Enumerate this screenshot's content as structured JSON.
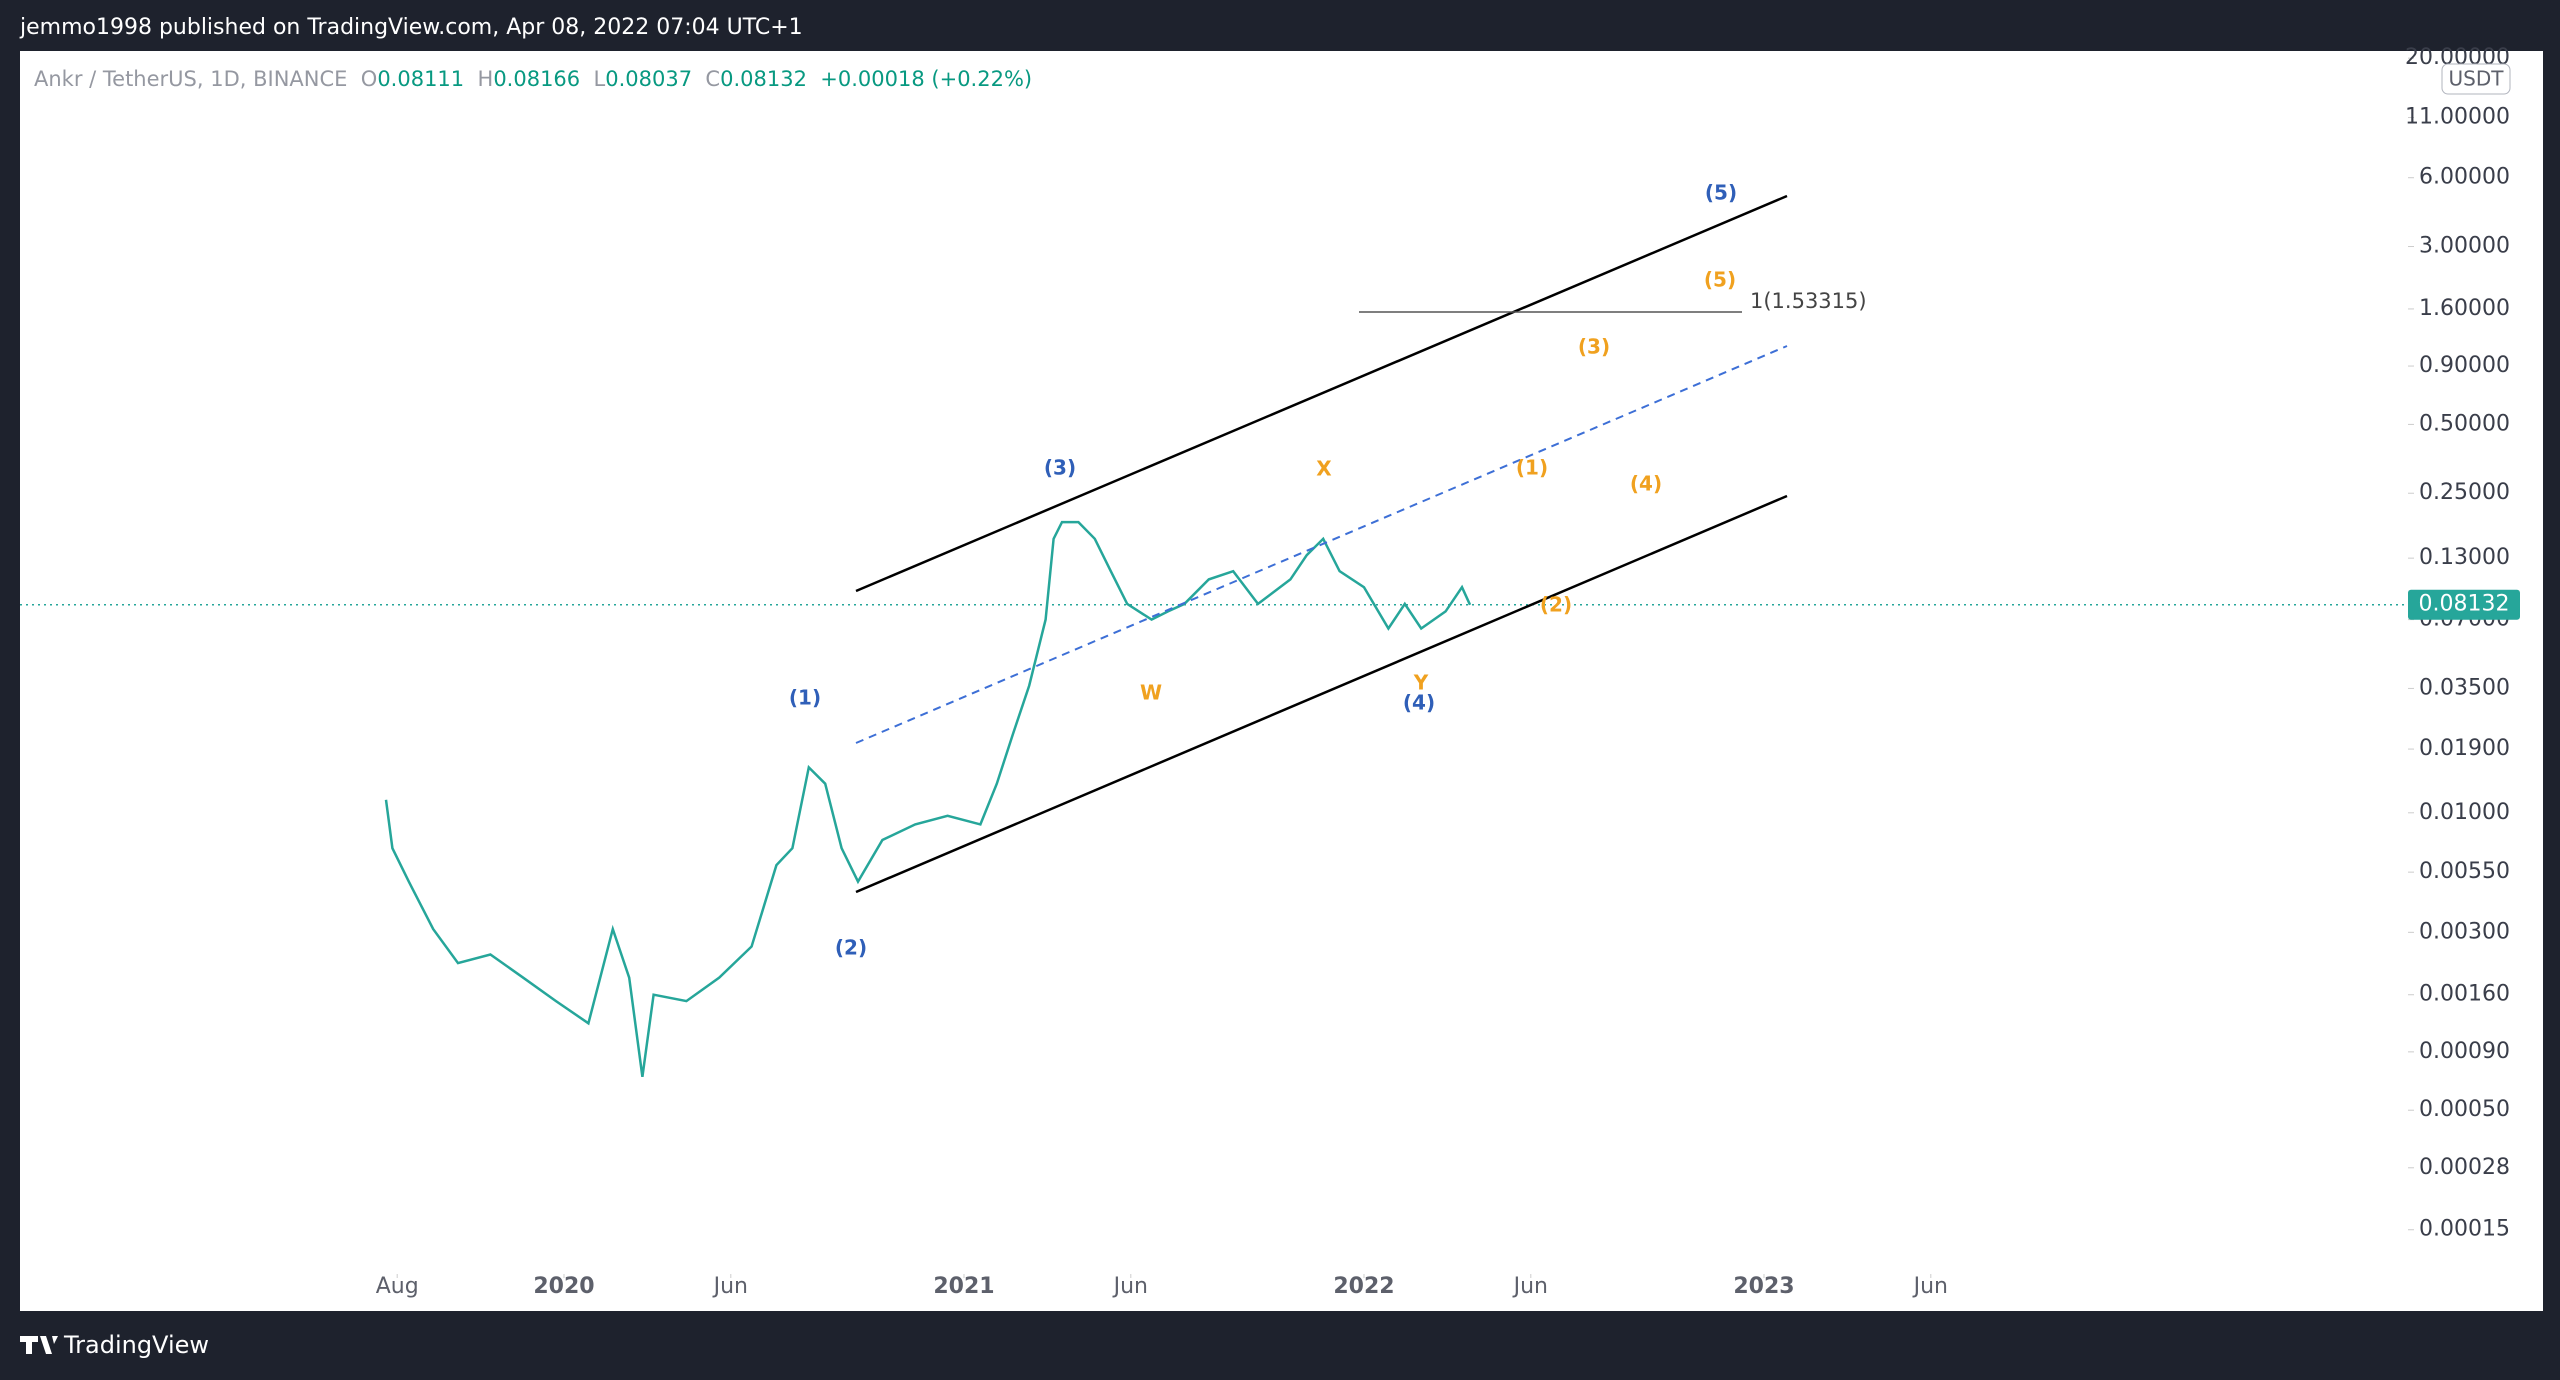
{
  "header": {
    "text": "jemmo1998 published on TradingView.com, Apr 08, 2022 07:04 UTC+1"
  },
  "footer": {
    "brand": "TradingView"
  },
  "chart_data": {
    "type": "line",
    "log_scale": true,
    "symbol": "Ankr / TetherUS, 1D, BINANCE",
    "ohlc": {
      "o_label": "O",
      "o": "0.08111",
      "h_label": "H",
      "h": "0.08166",
      "l_label": "L",
      "l": "0.08037",
      "c_label": "C",
      "c": "0.08132",
      "change": "+0.00018 (+0.22%)"
    },
    "currency": "USDT",
    "last_price": {
      "value": 0.08132,
      "label": "0.08132"
    },
    "x": [
      2019.555,
      2019.571,
      2019.612,
      2019.673,
      2019.735,
      2019.816,
      2019.898,
      2019.98,
      2020.061,
      2020.122,
      2020.163,
      2020.196,
      2020.224,
      2020.306,
      2020.388,
      2020.469,
      2020.531,
      2020.571,
      2020.612,
      2020.653,
      2020.694,
      2020.735,
      2020.796,
      2020.878,
      2020.959,
      2021.041,
      2021.082,
      2021.122,
      2021.163,
      2021.204,
      2021.224,
      2021.245,
      2021.286,
      2021.327,
      2021.367,
      2021.408,
      2021.469,
      2021.51,
      2021.551,
      2021.612,
      2021.673,
      2021.735,
      2021.816,
      2021.857,
      2021.898,
      2021.939,
      2022.0,
      2022.061,
      2022.102,
      2022.143,
      2022.204,
      2022.245,
      2022.265
    ],
    "series": [
      {
        "color": "#26a69a",
        "values": [
          0.0114,
          0.007,
          0.005,
          0.0031,
          0.0022,
          0.0024,
          0.0019,
          0.0015,
          0.0012,
          0.0031,
          0.0019,
          0.0007,
          0.0016,
          0.0015,
          0.0019,
          0.0026,
          0.0059,
          0.007,
          0.0158,
          0.0134,
          0.007,
          0.005,
          0.0076,
          0.0089,
          0.0097,
          0.0089,
          0.0134,
          0.022,
          0.036,
          0.07,
          0.158,
          0.187,
          0.187,
          0.158,
          0.114,
          0.082,
          0.07,
          0.076,
          0.082,
          0.105,
          0.114,
          0.082,
          0.105,
          0.134,
          0.158,
          0.114,
          0.097,
          0.064,
          0.082,
          0.064,
          0.076,
          0.097,
          0.0813
        ]
      }
    ],
    "xlim": [
      2018.64,
      2024.61
    ],
    "xticks": [
      {
        "value": 2019.583,
        "label": "Aug"
      },
      2020,
      {
        "value": 2020.417,
        "label": "Jun"
      },
      2021,
      {
        "value": 2021.417,
        "label": "Jun"
      },
      2022,
      {
        "value": 2022.417,
        "label": "Jun"
      },
      2023,
      {
        "value": 2023.417,
        "label": "Jun"
      }
    ],
    "ylim": [
      0.0001,
      21.5
    ],
    "yticks": [
      {
        "value": 20,
        "label": "20.00000"
      },
      {
        "value": 11,
        "label": "11.00000"
      },
      {
        "value": 6,
        "label": "6.00000"
      },
      {
        "value": 3,
        "label": "3.00000"
      },
      {
        "value": 1.6,
        "label": "1.60000"
      },
      {
        "value": 0.9,
        "label": "0.90000"
      },
      {
        "value": 0.5,
        "label": "0.50000"
      },
      {
        "value": 0.25,
        "label": "0.25000"
      },
      {
        "value": 0.13,
        "label": "0.13000"
      },
      {
        "value": 0.07,
        "label": "0.07000"
      },
      {
        "value": 0.035,
        "label": "0.03500"
      },
      {
        "value": 0.019,
        "label": "0.01900"
      },
      {
        "value": 0.01,
        "label": "0.01000"
      },
      {
        "value": 0.0055,
        "label": "0.00550"
      },
      {
        "value": 0.003,
        "label": "0.00300"
      },
      {
        "value": 0.0016,
        "label": "0.00160"
      },
      {
        "value": 0.0009,
        "label": "0.00090"
      },
      {
        "value": 0.0005,
        "label": "0.00050"
      },
      {
        "value": 0.00028,
        "label": "0.00028"
      },
      {
        "value": 0.00015,
        "label": "0.00015"
      }
    ],
    "annotations": {
      "blue_waves": [
        "(1)",
        "(2)",
        "(3)",
        "(4)",
        "(5)"
      ],
      "orange_waves": [
        "(1)",
        "(2)",
        "(3)",
        "(4)",
        "(5)",
        "W",
        "X",
        "Y"
      ],
      "fib_level": "1(1.53315)"
    }
  }
}
